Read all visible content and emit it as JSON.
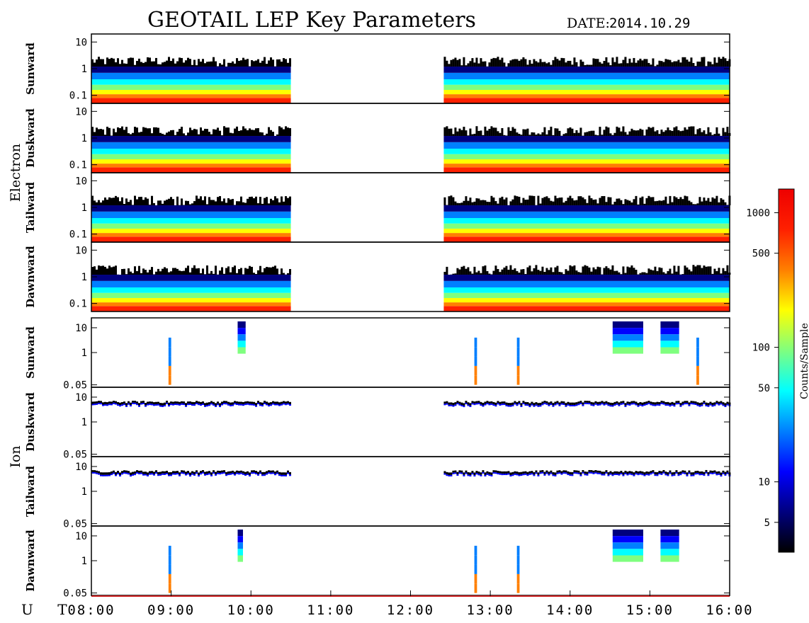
{
  "title": "GEOTAIL LEP Key Parameters",
  "date_label": "DATE:",
  "date_value": "2014.10.29",
  "colors": {
    "axis": "#000000",
    "background": "#ffffff",
    "baseline": "#cc2222"
  },
  "colorbar": {
    "label": "Counts/Sample",
    "scale": "log",
    "range": [
      3,
      1500
    ],
    "ticks": [
      {
        "value": 1000,
        "label": "1000"
      },
      {
        "value": 500,
        "label": "500"
      },
      {
        "value": 100,
        "label": "100"
      },
      {
        "value": 50,
        "label": "50"
      },
      {
        "value": 10,
        "label": "10"
      },
      {
        "value": 5,
        "label": "5"
      }
    ],
    "colormap": [
      "#000000",
      "#00007f",
      "#0000ff",
      "#007fff",
      "#00ffff",
      "#7fff7f",
      "#ffff00",
      "#ff7f00",
      "#ff2000",
      "#ee0000"
    ]
  },
  "chart_data": {
    "type": "heatmap",
    "xaxis": {
      "label": "U T",
      "range": [
        "08:00",
        "16:00"
      ],
      "ticks": [
        "08:00",
        "09:00",
        "10:00",
        "11:00",
        "12:00",
        "13:00",
        "14:00",
        "15:00",
        "16:00"
      ]
    },
    "groups": [
      {
        "name": "Electron",
        "yscale": "log",
        "yticks": [
          {
            "value": 10,
            "label": "10"
          },
          {
            "value": 1,
            "label": "1"
          },
          {
            "value": 0.1,
            "label": "0.1"
          }
        ],
        "panels": [
          {
            "name": "Sunward",
            "data_intervals": [
              [
                "08:00",
                "10:30"
              ],
              [
                "12:25",
                "16:00"
              ]
            ]
          },
          {
            "name": "Duskward",
            "data_intervals": [
              [
                "08:00",
                "10:30"
              ],
              [
                "12:25",
                "16:00"
              ]
            ]
          },
          {
            "name": "Tailward",
            "data_intervals": [
              [
                "08:00",
                "10:30"
              ],
              [
                "12:25",
                "16:00"
              ]
            ]
          },
          {
            "name": "Dawnward",
            "data_intervals": [
              [
                "08:00",
                "10:30"
              ],
              [
                "12:25",
                "16:00"
              ]
            ]
          }
        ]
      },
      {
        "name": "Ion",
        "yscale": "log",
        "yticks": [
          {
            "value": 10,
            "label": "10"
          },
          {
            "value": 1,
            "label": "1"
          },
          {
            "value": 0.05,
            "label": "0.05"
          }
        ],
        "panels": [
          {
            "name": "Sunward",
            "data_intervals": [
              [
                "08:58",
                "09:00"
              ],
              [
                "09:50",
                "09:56"
              ],
              [
                "12:48",
                "12:50"
              ],
              [
                "13:20",
                "13:22"
              ],
              [
                "14:32",
                "14:55"
              ],
              [
                "15:08",
                "15:22"
              ],
              [
                "15:35",
                "15:37"
              ]
            ]
          },
          {
            "name": "Duskward",
            "data_intervals": [
              [
                "08:00",
                "10:30"
              ],
              [
                "12:25",
                "16:00"
              ]
            ]
          },
          {
            "name": "Tailward",
            "data_intervals": [
              [
                "08:00",
                "10:30"
              ],
              [
                "12:25",
                "16:00"
              ]
            ]
          },
          {
            "name": "Dawnward",
            "data_intervals": [
              [
                "08:58",
                "09:00"
              ],
              [
                "09:50",
                "09:54"
              ],
              [
                "12:48",
                "12:50"
              ],
              [
                "13:20",
                "13:22"
              ],
              [
                "14:32",
                "14:55"
              ],
              [
                "15:08",
                "15:22"
              ]
            ]
          }
        ]
      }
    ]
  }
}
